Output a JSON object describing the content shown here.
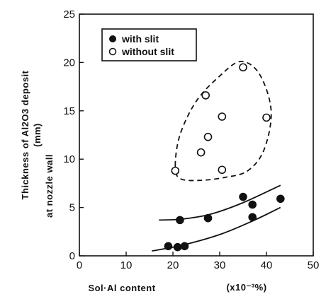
{
  "chart_data": {
    "type": "scatter",
    "xlim": [
      0,
      50
    ],
    "ylim": [
      0,
      25
    ],
    "x_ticks": [
      0,
      10,
      20,
      30,
      40,
      50
    ],
    "y_ticks": [
      0,
      5,
      10,
      15,
      20,
      25
    ],
    "xlabel_left": "Sol·Al content",
    "xlabel_right": "(x10⁻³%)",
    "ylabel_line1": "Thickness of Al2O3 deposit",
    "ylabel_line2": "(mm)",
    "ylabel_line3": "at nozzle wall",
    "legend_position": "top-left",
    "series": [
      {
        "name": "with slit",
        "marker": "filled-circle",
        "points": [
          {
            "x": 19.0,
            "y": 1.0
          },
          {
            "x": 21.0,
            "y": 0.9
          },
          {
            "x": 22.5,
            "y": 1.0
          },
          {
            "x": 21.5,
            "y": 3.7
          },
          {
            "x": 27.5,
            "y": 3.9
          },
          {
            "x": 35.0,
            "y": 6.1
          },
          {
            "x": 37.0,
            "y": 5.3
          },
          {
            "x": 37.0,
            "y": 4.0
          },
          {
            "x": 43.0,
            "y": 5.9
          }
        ]
      },
      {
        "name": "without slit",
        "marker": "open-circle",
        "points": [
          {
            "x": 20.5,
            "y": 8.8
          },
          {
            "x": 26.0,
            "y": 10.7
          },
          {
            "x": 27.5,
            "y": 12.3
          },
          {
            "x": 27.0,
            "y": 16.6
          },
          {
            "x": 30.5,
            "y": 14.4
          },
          {
            "x": 30.5,
            "y": 8.9
          },
          {
            "x": 35.0,
            "y": 19.5
          },
          {
            "x": 40.0,
            "y": 14.3
          }
        ]
      }
    ],
    "upper_band_curve": [
      [
        17,
        3.7
      ],
      [
        22,
        3.8
      ],
      [
        28,
        4.3
      ],
      [
        35,
        5.5
      ],
      [
        43,
        7.3
      ]
    ],
    "lower_band_curve": [
      [
        15.5,
        0.5
      ],
      [
        22,
        1.1
      ],
      [
        30,
        2.2
      ],
      [
        37,
        3.6
      ],
      [
        43,
        5.0
      ]
    ],
    "dashed_boundary": [
      [
        20.5,
        9.3
      ],
      [
        21.5,
        12.5
      ],
      [
        25,
        16.0
      ],
      [
        30,
        18.6
      ],
      [
        34.5,
        20.1
      ],
      [
        38.5,
        18.8
      ],
      [
        41.0,
        15.0
      ],
      [
        39.5,
        11.0
      ],
      [
        36.0,
        8.8
      ],
      [
        31.0,
        8.1
      ],
      [
        25.5,
        7.8
      ],
      [
        21.5,
        8.0
      ]
    ]
  }
}
